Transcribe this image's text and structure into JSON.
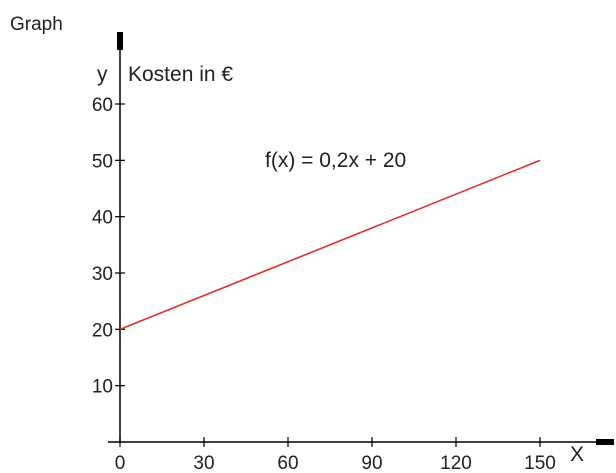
{
  "chart_data": {
    "type": "line",
    "title": "Graph",
    "ylabel": "y",
    "ylabel_note": "Kosten in €",
    "xlabel": "X",
    "annotation": "f(x) = 0,2x + 20",
    "x": [
      0,
      150
    ],
    "series": [
      {
        "values": [
          20,
          50
        ],
        "color": "#e03030"
      }
    ],
    "xlim": [
      0,
      150
    ],
    "ylim": [
      0,
      60
    ],
    "xticks": [
      0,
      30,
      60,
      90,
      120,
      150
    ],
    "yticks": [
      10,
      20,
      30,
      40,
      50,
      60
    ],
    "grid": false,
    "axis_color": "#000000"
  }
}
